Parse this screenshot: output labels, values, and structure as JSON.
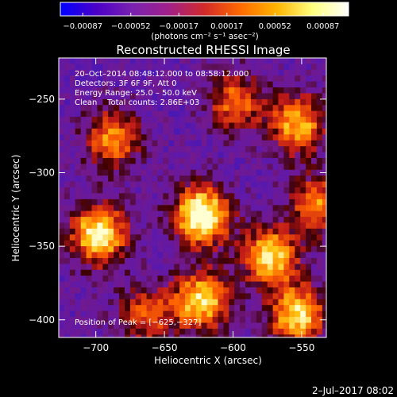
{
  "chart_data": {
    "type": "heatmap",
    "title": "Reconstructed RHESSI Image",
    "xlabel": "Heliocentric X (arcsec)",
    "ylabel": "Heliocentric Y (arcsec)",
    "xlim": [
      -727,
      -532
    ],
    "ylim": [
      -412,
      -222
    ],
    "x_ticks": [
      -700,
      -650,
      -600,
      -550
    ],
    "x_tick_labels": [
      "−700",
      "−650",
      "−600",
      "−550"
    ],
    "y_ticks": [
      -250,
      -300,
      -350,
      -400
    ],
    "y_tick_labels": [
      "−250",
      "−300",
      "−350",
      "−400"
    ],
    "colorbar": {
      "ticks": [
        "−0.00087",
        "−0.00052",
        "−0.00017",
        "0.00017",
        "0.00052",
        "0.00087"
      ],
      "range": [
        -0.00087,
        0.00087
      ],
      "unit_label": "(photons cm⁻² s⁻¹ asec⁻²)",
      "colors": [
        "#0000ff",
        "#4b00c8",
        "#7a22b0",
        "#a0208a",
        "#d22a2a",
        "#ff6a00",
        "#ffb400",
        "#ffff80",
        "#ffffff"
      ]
    },
    "annotations": {
      "time_range": "20–Oct–2014 08:48:12.000 to 08:58:12.000",
      "detectors": "Detectors: 3F 6F 9F, Att 0",
      "energy": "Energy Range: 25.0 – 50.0 keV",
      "clean": "Clean    Total counts: 2.86E+03",
      "peak": "Position of Peak = [−625,−327]"
    },
    "grid": false,
    "emission_sources": [
      {
        "x": -625,
        "y": -327,
        "relative_intensity": 1.0
      },
      {
        "x": -700,
        "y": -340,
        "relative_intensity": 0.9
      },
      {
        "x": -625,
        "y": -385,
        "relative_intensity": 0.8
      },
      {
        "x": -575,
        "y": -355,
        "relative_intensity": 0.8
      },
      {
        "x": -555,
        "y": -395,
        "relative_intensity": 0.8
      },
      {
        "x": -555,
        "y": -265,
        "relative_intensity": 0.7
      },
      {
        "x": -690,
        "y": -275,
        "relative_intensity": 0.6
      },
      {
        "x": -600,
        "y": -250,
        "relative_intensity": 0.55
      },
      {
        "x": -540,
        "y": -320,
        "relative_intensity": 0.6
      },
      {
        "x": -665,
        "y": -395,
        "relative_intensity": 0.5
      }
    ]
  },
  "footer": {
    "date": "2–Jul–2017 08:02"
  }
}
